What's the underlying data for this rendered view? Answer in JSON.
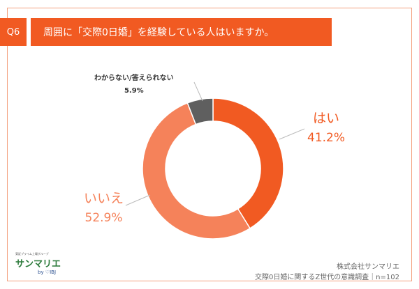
{
  "header": {
    "question_no": "Q6",
    "title": "周囲に「交際0日婚」を経験している人はいますか。"
  },
  "chart_data": {
    "type": "pie",
    "donut": true,
    "start": "top",
    "direction": "clockwise",
    "categories": [
      "はい",
      "いいえ",
      "わからない/答えられない"
    ],
    "values": [
      41.2,
      52.9,
      5.9
    ],
    "labels": [
      "41.2%",
      "52.9%",
      "5.9%"
    ],
    "colors": [
      "#f15a22",
      "#f5825a",
      "#5f5f5f"
    ]
  },
  "footer": {
    "logo_tagline": "東証プライム上場グループ",
    "logo_name": "サンマリエ",
    "logo_by": "by ♡IBJ",
    "company": "株式会社サンマリエ",
    "survey": "交際0日婚に関するZ世代の意識調査｜n=102"
  }
}
